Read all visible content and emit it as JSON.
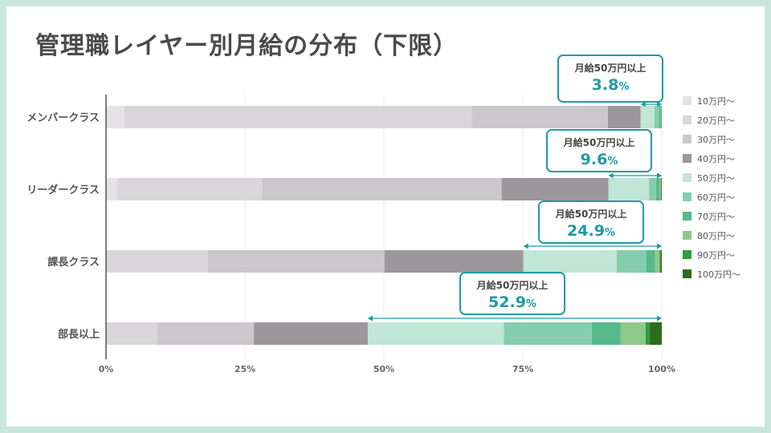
{
  "title": "管理職レイヤー別月給の分布（下限）",
  "colors": {
    "accent": "#1e9aa5",
    "bands": [
      "#e4e2e6",
      "#d9d6da",
      "#cbc8cc",
      "#9b979b",
      "#bfe6d6",
      "#86cdb0",
      "#55b98b",
      "#8fc98a",
      "#2f9e3f",
      "#2e6b1e"
    ]
  },
  "chart_data": {
    "type": "bar",
    "orientation": "horizontal",
    "stacked": true,
    "categories": [
      "メンバークラス",
      "リーダークラス",
      "課長クラス",
      "部長以上"
    ],
    "series": [
      {
        "name": "10万円～",
        "values": [
          3.3,
          2.1,
          0.0,
          0.0
        ]
      },
      {
        "name": "20万円～",
        "values": [
          62.5,
          26.0,
          18.3,
          9.2
        ]
      },
      {
        "name": "30万円～",
        "values": [
          24.5,
          43.1,
          31.8,
          17.4
        ]
      },
      {
        "name": "40万円～",
        "values": [
          5.9,
          19.2,
          25.0,
          20.5
        ]
      },
      {
        "name": "50万円～",
        "values": [
          2.5,
          7.3,
          16.8,
          24.5
        ]
      },
      {
        "name": "60万円～",
        "values": [
          0.8,
          1.3,
          5.3,
          15.8
        ]
      },
      {
        "name": "70万円～",
        "values": [
          0.3,
          0.6,
          1.6,
          5.2
        ]
      },
      {
        "name": "80万円～",
        "values": [
          0.1,
          0.2,
          0.8,
          4.5
        ]
      },
      {
        "name": "90万円～",
        "values": [
          0.1,
          0.1,
          0.2,
          0.7
        ]
      },
      {
        "name": "100万円～",
        "values": [
          0.0,
          0.1,
          0.2,
          2.2
        ]
      }
    ],
    "x_ticks": [
      "0%",
      "25%",
      "50%",
      "75%",
      "100%"
    ],
    "xlim": [
      0,
      100
    ],
    "grid": true,
    "legend": "right",
    "annotations": [
      {
        "label": "月給50万円以上",
        "value": "3.8",
        "unit": "%",
        "from": 96.2
      },
      {
        "label": "月給50万円以上",
        "value": "9.6",
        "unit": "%",
        "from": 90.4
      },
      {
        "label": "月給50万円以上",
        "value": "24.9",
        "unit": "%",
        "from": 75.1
      },
      {
        "label": "月給50万円以上",
        "value": "52.9",
        "unit": "%",
        "from": 47.1
      }
    ]
  }
}
